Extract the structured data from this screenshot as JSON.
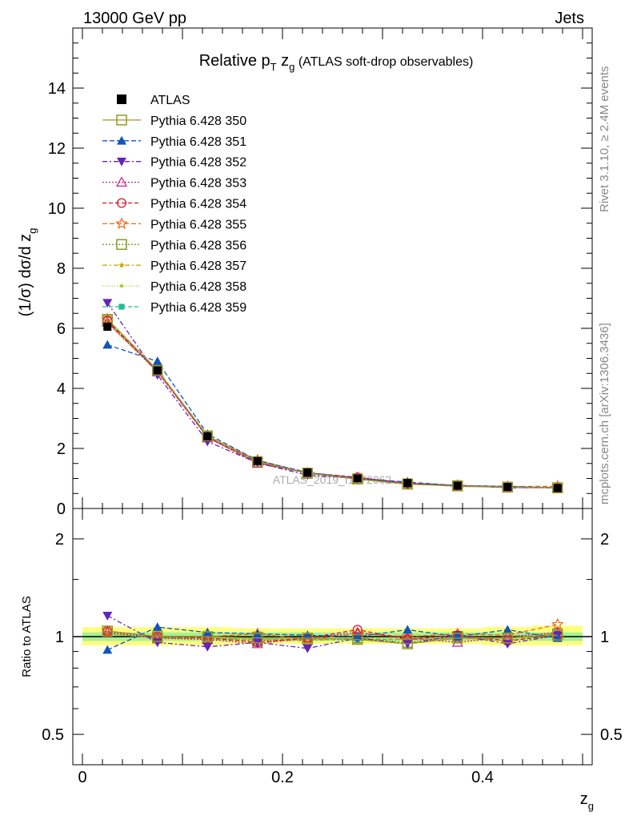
{
  "header": {
    "left": "13000 GeV pp",
    "right": "Jets"
  },
  "title": {
    "main": "Relative p",
    "main_sub": "T",
    "var": " z",
    "var_sub": "g",
    "suffix": " (ATLAS soft-drop observables)"
  },
  "side": {
    "rivet": "Rivet 3.1.10, ≥ 2.4M events",
    "mcplots": "mcplots.cern.ch [arXiv:1306.3436]"
  },
  "watermark": "ATLAS_2019_I1772062",
  "ratio_label": "Ratio to ATLAS",
  "colors": {
    "data": "#000000",
    "band_outer": "#ffff66",
    "band_inner": "#99ee99"
  },
  "chart_data": [
    {
      "type": "line",
      "panel": "main",
      "ylabel": "(1/σ) dσ/d z",
      "ylabel_sub": "g",
      "xlim": [
        -0.01,
        0.51
      ],
      "ylim": [
        0,
        16
      ],
      "yticks": [
        0,
        2,
        4,
        6,
        8,
        10,
        12,
        14
      ],
      "yticklabels": [
        "0",
        "2",
        "4",
        "6",
        "8",
        "10",
        "12",
        "14"
      ],
      "legend_position": "top-left",
      "x": [
        0.025,
        0.075,
        0.125,
        0.175,
        0.225,
        0.275,
        0.325,
        0.375,
        0.425,
        0.475
      ],
      "data": {
        "name": "ATLAS",
        "values": [
          6.05,
          4.6,
          2.4,
          1.58,
          1.2,
          1.0,
          0.85,
          0.76,
          0.72,
          0.68
        ]
      },
      "series": [
        {
          "name": "Pythia 6.428 350",
          "color": "#999922",
          "dash": "",
          "marker": "square-open",
          "values": [
            6.3,
            4.6,
            2.42,
            1.56,
            1.18,
            0.98,
            0.81,
            0.75,
            0.71,
            0.69
          ]
        },
        {
          "name": "Pythia 6.428 351",
          "color": "#1155bb",
          "dash": "6,3",
          "marker": "triangle-up",
          "values": [
            5.45,
            4.9,
            2.48,
            1.6,
            1.2,
            1.0,
            0.88,
            0.76,
            0.74,
            0.68
          ]
        },
        {
          "name": "Pythia 6.428 352",
          "color": "#6622bb",
          "dash": "6,3,2,3",
          "marker": "triangle-down",
          "values": [
            6.85,
            4.45,
            2.23,
            1.52,
            1.11,
            1.0,
            0.81,
            0.77,
            0.69,
            0.69
          ]
        },
        {
          "name": "Pythia 6.428 353",
          "color": "#cc2288",
          "dash": "2,2",
          "marker": "triangle-open",
          "values": [
            6.2,
            4.55,
            2.36,
            1.5,
            1.18,
            1.03,
            0.84,
            0.73,
            0.72,
            0.7
          ]
        },
        {
          "name": "Pythia 6.428 354",
          "color": "#dd1122",
          "dash": "5,3",
          "marker": "circle-open",
          "values": [
            6.25,
            4.58,
            2.38,
            1.52,
            1.19,
            1.04,
            0.83,
            0.77,
            0.7,
            0.69
          ]
        },
        {
          "name": "Pythia 6.428 355",
          "color": "#ee6611",
          "dash": "6,3",
          "marker": "star-open",
          "values": [
            6.3,
            4.62,
            2.4,
            1.61,
            1.18,
            1.02,
            0.85,
            0.77,
            0.73,
            0.74
          ]
        },
        {
          "name": "Pythia 6.428 356",
          "color": "#889922",
          "dash": "2,2",
          "marker": "square-open",
          "values": [
            6.25,
            4.58,
            2.38,
            1.54,
            1.17,
            0.99,
            0.82,
            0.76,
            0.71,
            0.69
          ]
        },
        {
          "name": "Pythia 6.428 357",
          "color": "#ccaa11",
          "dash": "6,3,2,3",
          "marker": "star-small",
          "values": [
            6.2,
            4.55,
            2.37,
            1.55,
            1.17,
            0.99,
            0.83,
            0.75,
            0.7,
            0.7
          ]
        },
        {
          "name": "Pythia 6.428 358",
          "color": "#aacc11",
          "dash": "1,2",
          "marker": "dot",
          "values": [
            6.15,
            4.57,
            2.39,
            1.55,
            1.18,
            0.99,
            0.84,
            0.76,
            0.71,
            0.7
          ]
        },
        {
          "name": "Pythia 6.428 359",
          "color": "#22bb99",
          "dash": "5,3",
          "marker": "square-small",
          "values": [
            6.2,
            4.56,
            2.38,
            1.55,
            1.17,
            0.98,
            0.83,
            0.75,
            0.71,
            0.69
          ]
        }
      ]
    },
    {
      "type": "line",
      "panel": "ratio",
      "ylabel": "Ratio to ATLAS",
      "xlabel": "z",
      "xlabel_sub": "g",
      "xlim": [
        -0.01,
        0.51
      ],
      "ylim": [
        0.4,
        2.4
      ],
      "log_y": true,
      "yticks": [
        0.5,
        1,
        2
      ],
      "yticklabels": [
        "0.5",
        "1",
        "2"
      ],
      "xticks": [
        0,
        0.2,
        0.4
      ],
      "xticklabels": [
        "0",
        "0.2",
        "0.4"
      ],
      "x": [
        0.025,
        0.075,
        0.125,
        0.175,
        0.225,
        0.275,
        0.325,
        0.375,
        0.425,
        0.475
      ],
      "band_outer": {
        "low": [
          0.94,
          0.94,
          0.94,
          0.95,
          0.95,
          0.95,
          0.95,
          0.95,
          0.94,
          0.94
        ],
        "high": [
          1.07,
          1.07,
          1.07,
          1.06,
          1.06,
          1.06,
          1.06,
          1.06,
          1.07,
          1.08
        ]
      },
      "band_inner": {
        "low": [
          0.97,
          0.97,
          0.97,
          0.97,
          0.97,
          0.97,
          0.97,
          0.97,
          0.97,
          0.97
        ],
        "high": [
          1.03,
          1.03,
          1.03,
          1.03,
          1.03,
          1.03,
          1.03,
          1.03,
          1.03,
          1.03
        ]
      },
      "series": [
        {
          "name": "Pythia 6.428 350",
          "values": [
            1.04,
            1.0,
            1.0,
            0.99,
            0.99,
            0.98,
            0.95,
            0.99,
            0.99,
            1.01
          ]
        },
        {
          "name": "Pythia 6.428 351",
          "values": [
            0.91,
            1.07,
            1.03,
            1.02,
            1.01,
            1.0,
            1.05,
            1.0,
            1.05,
            0.99
          ]
        },
        {
          "name": "Pythia 6.428 352",
          "values": [
            1.16,
            0.96,
            0.93,
            0.96,
            0.92,
            0.99,
            0.95,
            1.01,
            0.95,
            1.01
          ]
        },
        {
          "name": "Pythia 6.428 353",
          "values": [
            1.03,
            0.99,
            0.98,
            0.95,
            0.99,
            1.03,
            0.99,
            0.96,
            1.0,
            1.03
          ]
        },
        {
          "name": "Pythia 6.428 354",
          "values": [
            1.04,
            1.0,
            0.99,
            0.96,
            0.99,
            1.05,
            0.98,
            1.01,
            0.97,
            1.01
          ]
        },
        {
          "name": "Pythia 6.428 355",
          "values": [
            1.04,
            1.0,
            1.0,
            1.02,
            0.98,
            1.02,
            1.0,
            1.02,
            1.01,
            1.09
          ]
        },
        {
          "name": "Pythia 6.428 356",
          "values": [
            1.04,
            0.99,
            0.99,
            0.97,
            0.98,
            0.99,
            0.96,
            1.0,
            0.99,
            1.02
          ]
        },
        {
          "name": "Pythia 6.428 357",
          "values": [
            1.02,
            0.99,
            0.99,
            0.98,
            0.97,
            0.99,
            0.98,
            0.99,
            0.97,
            1.03
          ]
        },
        {
          "name": "Pythia 6.428 358",
          "values": [
            1.02,
            0.99,
            1.0,
            0.98,
            0.98,
            0.99,
            0.99,
            1.0,
            0.99,
            1.03
          ]
        },
        {
          "name": "Pythia 6.428 359",
          "values": [
            1.02,
            0.99,
            0.99,
            0.98,
            0.98,
            0.98,
            0.98,
            0.99,
            0.99,
            1.02
          ]
        }
      ]
    }
  ]
}
